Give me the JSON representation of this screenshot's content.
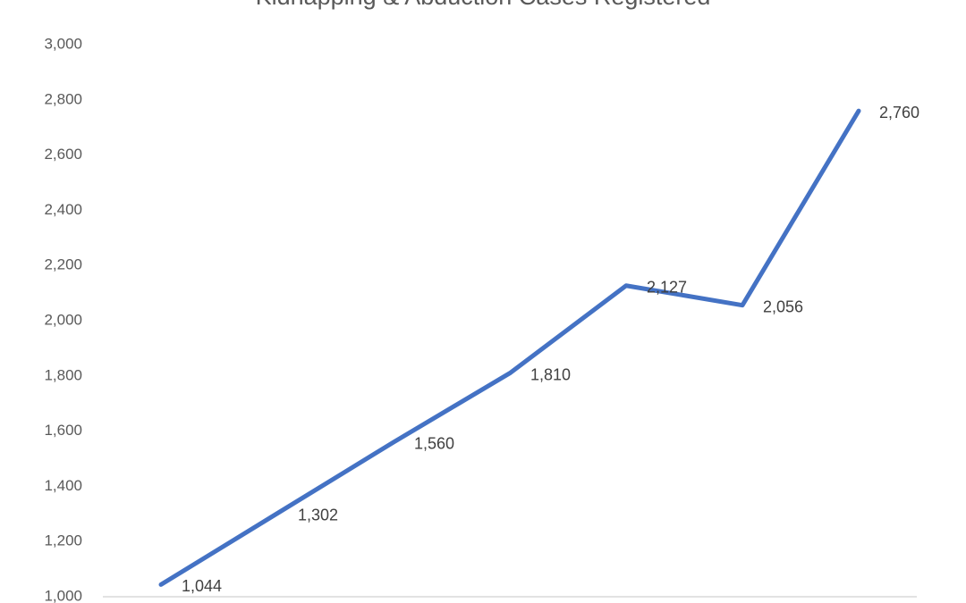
{
  "chart_data": {
    "type": "line",
    "title": "Kidnapping & Abduction Cases Registered",
    "categories": [
      null,
      null,
      null,
      null,
      null,
      null,
      null
    ],
    "values": [
      1044,
      1302,
      1560,
      1810,
      2127,
      2056,
      2760
    ],
    "value_labels": [
      "1,044",
      "1,302",
      "1,560",
      "1,810",
      "2,127",
      "2,056",
      "2,760"
    ],
    "color": "#4472c4",
    "ylim": [
      1000,
      3000
    ],
    "yticks": [
      {
        "value": 1000,
        "label": "1,000"
      },
      {
        "value": 1200,
        "label": "1,200"
      },
      {
        "value": 1400,
        "label": "1,400"
      },
      {
        "value": 1600,
        "label": "1,600"
      },
      {
        "value": 1800,
        "label": "1,800"
      },
      {
        "value": 2000,
        "label": "2,000"
      },
      {
        "value": 2200,
        "label": "2,200"
      },
      {
        "value": 2400,
        "label": "2,400"
      },
      {
        "value": 2600,
        "label": "2,600"
      },
      {
        "value": 2800,
        "label": "2,800"
      },
      {
        "value": 3000,
        "label": "3,000"
      }
    ],
    "grid": false
  }
}
